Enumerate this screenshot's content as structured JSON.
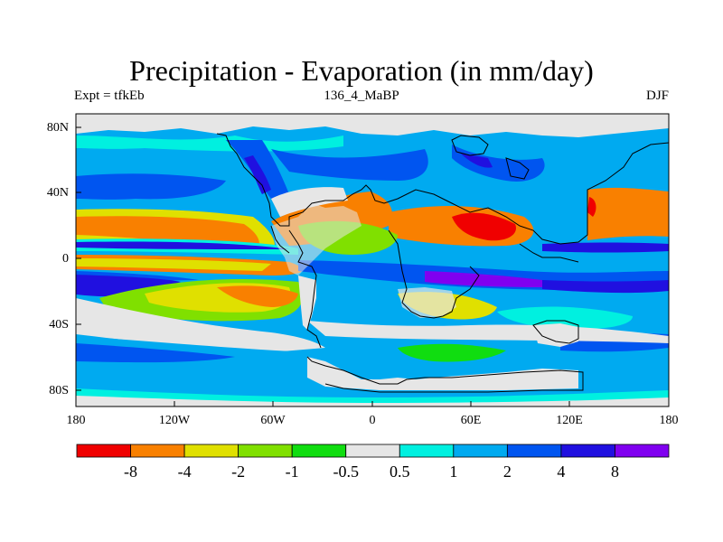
{
  "title": "Precipitation - Evaporation (in mm/day)",
  "subtitle_left": "Expt = tfkEb",
  "subtitle_center": "136_4_MaBP",
  "subtitle_right": "DJF",
  "lat_labels": [
    "80N",
    "40N",
    "0",
    "40S",
    "80S"
  ],
  "lon_labels": [
    "180",
    "120W",
    "60W",
    "0",
    "60E",
    "120E",
    "180"
  ],
  "colorbar": {
    "colors": [
      "#f00000",
      "#f98000",
      "#e0e000",
      "#80e000",
      "#10dd10",
      "#e6e6e6",
      "#00f0e0",
      "#00aaf0",
      "#0055f0",
      "#2010e0",
      "#8000f0"
    ],
    "labels": [
      "-8",
      "-4",
      "-2",
      "-1",
      "-0.5",
      "0.5",
      "1",
      "2",
      "4",
      "8"
    ]
  }
}
